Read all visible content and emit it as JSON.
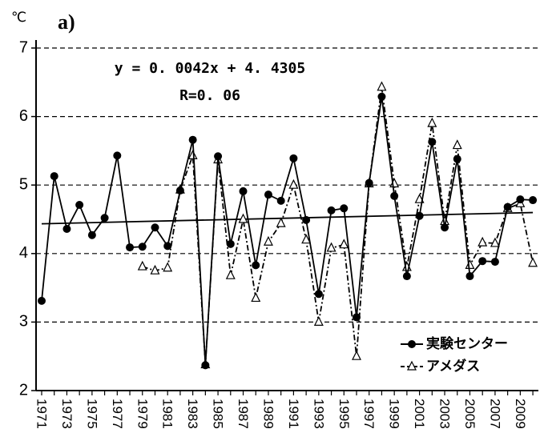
{
  "chart_data": {
    "type": "line",
    "unit_label": "℃",
    "panel_label": "a)",
    "annotations": [
      "y = 0. 0042x + 4. 4305",
      "R=0. 06"
    ],
    "trend_line": {
      "slope": 0.0042,
      "intercept": 4.4305,
      "color": "#000"
    },
    "categories": [
      "1971",
      null,
      "1973",
      null,
      "1975",
      null,
      "1977",
      null,
      "1979",
      null,
      "1981",
      null,
      "1983",
      null,
      "1985",
      null,
      "1987",
      null,
      "1989",
      null,
      "1991",
      null,
      "1993",
      null,
      "1995",
      null,
      "1997",
      null,
      "1999",
      null,
      "2001",
      null,
      "2003",
      null,
      "2005",
      null,
      "2007",
      null,
      "2009",
      null
    ],
    "series": [
      {
        "name": "実験センター",
        "color": "#000",
        "line_style": "solid",
        "marker": "circle",
        "values": [
          3.31,
          5.13,
          4.36,
          4.71,
          4.27,
          4.52,
          5.43,
          4.09,
          4.1,
          4.38,
          4.11,
          4.92,
          5.66,
          2.37,
          5.42,
          4.14,
          4.91,
          3.83,
          4.86,
          4.77,
          5.39,
          4.49,
          3.41,
          4.63,
          4.66,
          3.07,
          5.03,
          6.29,
          4.84,
          3.67,
          4.55,
          5.63,
          4.38,
          5.38,
          3.67,
          3.89,
          3.88,
          4.68,
          4.79,
          4.78
        ]
      },
      {
        "name": "アメダス",
        "color": "#000",
        "line_style": "dashdot",
        "marker": "triangle",
        "values": [
          null,
          null,
          null,
          null,
          null,
          null,
          null,
          null,
          3.81,
          3.75,
          3.79,
          4.93,
          5.43,
          2.38,
          5.37,
          3.68,
          4.5,
          3.35,
          4.17,
          4.44,
          5.0,
          4.2,
          3.0,
          4.08,
          4.13,
          2.5,
          5.02,
          6.43,
          5.02,
          3.8,
          4.79,
          5.9,
          4.47,
          5.58,
          3.83,
          4.16,
          4.15,
          4.66,
          4.73,
          3.86
        ]
      }
    ],
    "ylim": [
      2,
      7
    ],
    "yticks": [
      2,
      3,
      4,
      5,
      6,
      7
    ],
    "grid": true,
    "legend": "lower right"
  }
}
